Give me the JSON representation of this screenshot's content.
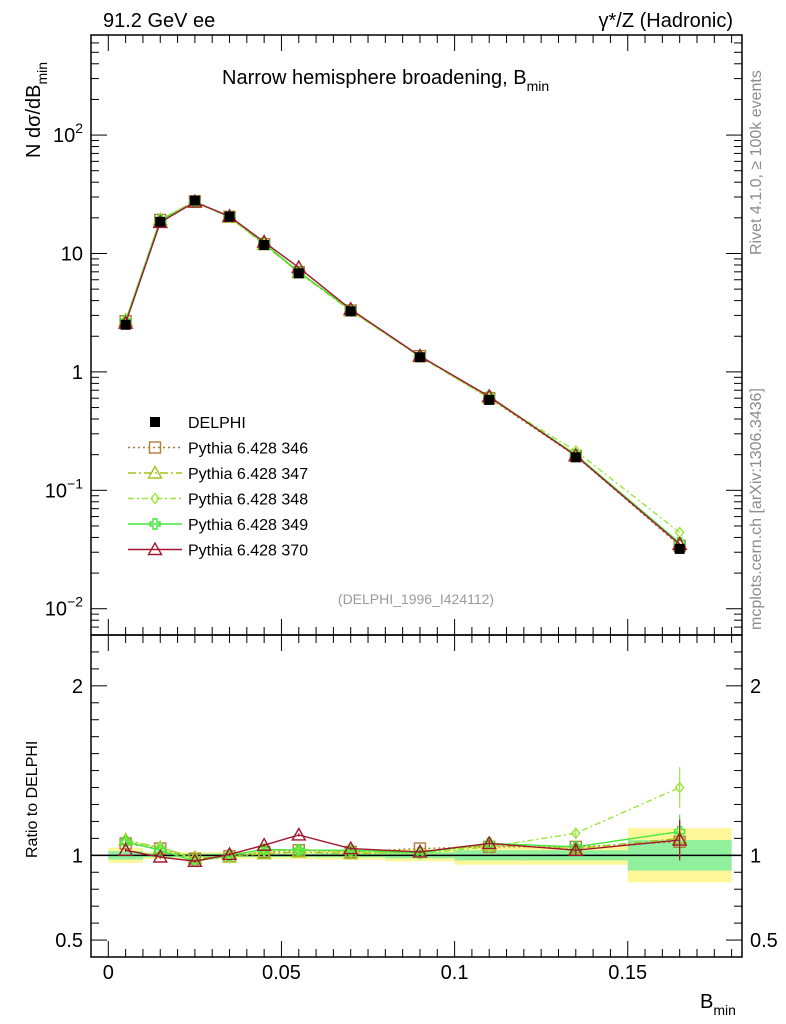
{
  "header": {
    "left": "91.2 GeV ee",
    "right": "γ*/Z (Hadronic)"
  },
  "side": {
    "rivet": "Rivet 4.1.0, ≥ 100k events",
    "mcplots": "mcplots.cern.ch [arXiv:1306.3436]"
  },
  "chart_data": [
    {
      "type": "line",
      "title": "Narrow hemisphere broadening, B_min",
      "title_main": "Narrow hemisphere broadening, B",
      "title_sub": "min",
      "ylabel_main": "N  dσ/dB",
      "ylabel_sub": "min",
      "yscale": "log",
      "ylim": [
        0.006,
        700
      ],
      "xlim": [
        -0.005,
        0.183
      ],
      "yticks": [
        {
          "value": 0.01,
          "base": "10",
          "exp": "−2"
        },
        {
          "value": 0.1,
          "base": "10",
          "exp": "−1"
        },
        {
          "value": 1,
          "base": "1",
          "exp": ""
        },
        {
          "value": 10,
          "base": "10",
          "exp": ""
        },
        {
          "value": 100,
          "base": "10",
          "exp": "2"
        }
      ],
      "watermark": "(DELPHI_1996_I424112)",
      "x": [
        0.005,
        0.015,
        0.025,
        0.035,
        0.045,
        0.055,
        0.07,
        0.09,
        0.11,
        0.135,
        0.165
      ],
      "data": {
        "name": "DELPHI",
        "values": [
          2.5,
          18.5,
          28.0,
          20.5,
          11.8,
          6.8,
          3.25,
          1.33,
          0.58,
          0.19,
          0.032
        ]
      },
      "series": [
        {
          "name": "Pythia 6.428 346",
          "color": "#b07c3c",
          "marker": "square",
          "dash": "2,3",
          "values": [
            2.68,
            19.2,
            27.5,
            20.4,
            12.0,
            6.95,
            3.3,
            1.36,
            0.6,
            0.195,
            0.034
          ]
        },
        {
          "name": "Pythia 6.428 347",
          "color": "#a4c21a",
          "marker": "triangle",
          "dash": "8,3,2,3",
          "values": [
            2.72,
            19.3,
            27.6,
            20.3,
            11.9,
            6.9,
            3.28,
            1.35,
            0.61,
            0.198,
            0.035
          ]
        },
        {
          "name": "Pythia 6.428 348",
          "color": "#9ae63c",
          "marker": "diamond",
          "dash": "6,3,2,3",
          "values": [
            2.7,
            19.4,
            27.2,
            20.2,
            12.1,
            7.05,
            3.32,
            1.34,
            0.6,
            0.215,
            0.044
          ]
        },
        {
          "name": "Pythia 6.428 349",
          "color": "#44e83c",
          "marker": "cross",
          "dash": "",
          "values": [
            2.69,
            19.0,
            27.0,
            20.6,
            12.2,
            7.0,
            3.35,
            1.35,
            0.62,
            0.2,
            0.036
          ]
        },
        {
          "name": "Pythia 6.428 370",
          "color": "#a01830",
          "marker": "triangle",
          "dash": "",
          "values": [
            2.58,
            18.3,
            27.2,
            20.6,
            12.5,
            7.6,
            3.38,
            1.36,
            0.62,
            0.196,
            0.035
          ]
        }
      ]
    },
    {
      "type": "line",
      "title": "Ratio to DELPHI",
      "ylabel": "Ratio to DELPHI",
      "xlabel_main": "B",
      "xlabel_sub": "min",
      "ylim": [
        0.4,
        2.3
      ],
      "yticks": [
        "0.5",
        "1",
        "2"
      ],
      "ytick_values": [
        0.5,
        1,
        2
      ],
      "xticks": [
        "0",
        "0.05",
        "0.1",
        "0.15"
      ],
      "xtick_values": [
        0,
        0.05,
        0.1,
        0.15
      ],
      "bands": [
        {
          "x0": 0.0,
          "x1": 0.01,
          "stat": 0.025,
          "total": 0.045
        },
        {
          "x0": 0.01,
          "x1": 0.02,
          "stat": 0.012,
          "total": 0.022
        },
        {
          "x0": 0.02,
          "x1": 0.03,
          "stat": 0.01,
          "total": 0.02
        },
        {
          "x0": 0.03,
          "x1": 0.04,
          "stat": 0.01,
          "total": 0.02
        },
        {
          "x0": 0.04,
          "x1": 0.05,
          "stat": 0.01,
          "total": 0.02
        },
        {
          "x0": 0.05,
          "x1": 0.06,
          "stat": 0.01,
          "total": 0.022
        },
        {
          "x0": 0.06,
          "x1": 0.08,
          "stat": 0.012,
          "total": 0.025
        },
        {
          "x0": 0.08,
          "x1": 0.1,
          "stat": 0.018,
          "total": 0.035
        },
        {
          "x0": 0.1,
          "x1": 0.12,
          "stat": 0.03,
          "total": 0.055
        },
        {
          "x0": 0.12,
          "x1": 0.15,
          "stat": 0.03,
          "total": 0.055
        },
        {
          "x0": 0.15,
          "x1": 0.18,
          "stat": 0.09,
          "total": 0.16
        }
      ],
      "series": [
        {
          "name": "Pythia 6.428 346",
          "values": [
            1.07,
            1.04,
            0.98,
            0.995,
            1.02,
            1.03,
            1.02,
            1.04,
            1.05,
            1.05,
            1.08
          ],
          "err": [
            0.01,
            0.01,
            0.01,
            0.01,
            0.01,
            0.01,
            0.01,
            0.01,
            0.02,
            0.03,
            0.1
          ]
        },
        {
          "name": "Pythia 6.428 347",
          "values": [
            1.09,
            1.045,
            0.985,
            0.99,
            1.01,
            1.02,
            1.01,
            1.02,
            1.06,
            1.04,
            1.1
          ],
          "err": [
            0.01,
            0.01,
            0.01,
            0.01,
            0.01,
            0.01,
            0.01,
            0.01,
            0.02,
            0.03,
            0.1
          ]
        },
        {
          "name": "Pythia 6.428 348",
          "values": [
            1.08,
            1.05,
            0.975,
            0.985,
            1.025,
            1.035,
            1.02,
            1.01,
            1.05,
            1.13,
            1.4
          ],
          "err": [
            0.01,
            0.01,
            0.01,
            0.01,
            0.01,
            0.01,
            0.01,
            0.01,
            0.02,
            0.03,
            0.12
          ]
        },
        {
          "name": "Pythia 6.428 349",
          "values": [
            1.08,
            1.03,
            0.965,
            1.0,
            1.035,
            1.03,
            1.03,
            1.015,
            1.07,
            1.05,
            1.14
          ],
          "err": [
            0.01,
            0.01,
            0.01,
            0.01,
            0.01,
            0.01,
            0.01,
            0.01,
            0.02,
            0.03,
            0.1
          ]
        },
        {
          "name": "Pythia 6.428 370",
          "values": [
            1.03,
            0.99,
            0.965,
            1.005,
            1.06,
            1.12,
            1.04,
            1.02,
            1.07,
            1.03,
            1.09
          ],
          "err": [
            0.01,
            0.01,
            0.01,
            0.01,
            0.01,
            0.01,
            0.01,
            0.01,
            0.02,
            0.03,
            0.12
          ]
        }
      ]
    }
  ]
}
